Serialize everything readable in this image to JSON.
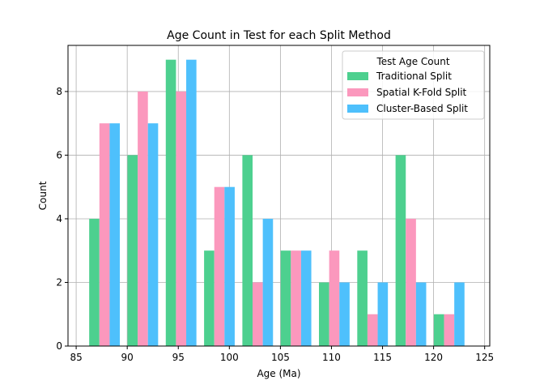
{
  "chart_data": {
    "type": "bar",
    "title": "Age Count in Test for each Split Method",
    "xlabel": "Age (Ma)",
    "ylabel": "Count",
    "xlim": [
      84.2,
      125.5
    ],
    "ylim": [
      0,
      9.45
    ],
    "xticks": [
      85,
      90,
      95,
      100,
      105,
      110,
      115,
      120,
      125
    ],
    "yticks": [
      0,
      2,
      4,
      6,
      8
    ],
    "bin_edges": [
      85.9,
      89.65,
      93.4,
      97.15,
      100.9,
      104.65,
      108.4,
      112.15,
      115.9,
      119.65,
      123.4
    ],
    "grid": true,
    "legend": {
      "title": "Test Age Count",
      "placement": "upper right"
    },
    "series": [
      {
        "name": "Traditional Split",
        "color": "#4dd08f",
        "values": [
          4,
          6,
          9,
          3,
          6,
          3,
          2,
          3,
          6,
          1
        ]
      },
      {
        "name": "Spatial K-Fold Split",
        "color": "#fb98bd",
        "values": [
          7,
          8,
          8,
          5,
          2,
          3,
          3,
          1,
          4,
          1
        ]
      },
      {
        "name": "Cluster-Based Split",
        "color": "#4ec0fc",
        "values": [
          7,
          7,
          9,
          5,
          4,
          3,
          2,
          2,
          2,
          2
        ]
      }
    ]
  }
}
